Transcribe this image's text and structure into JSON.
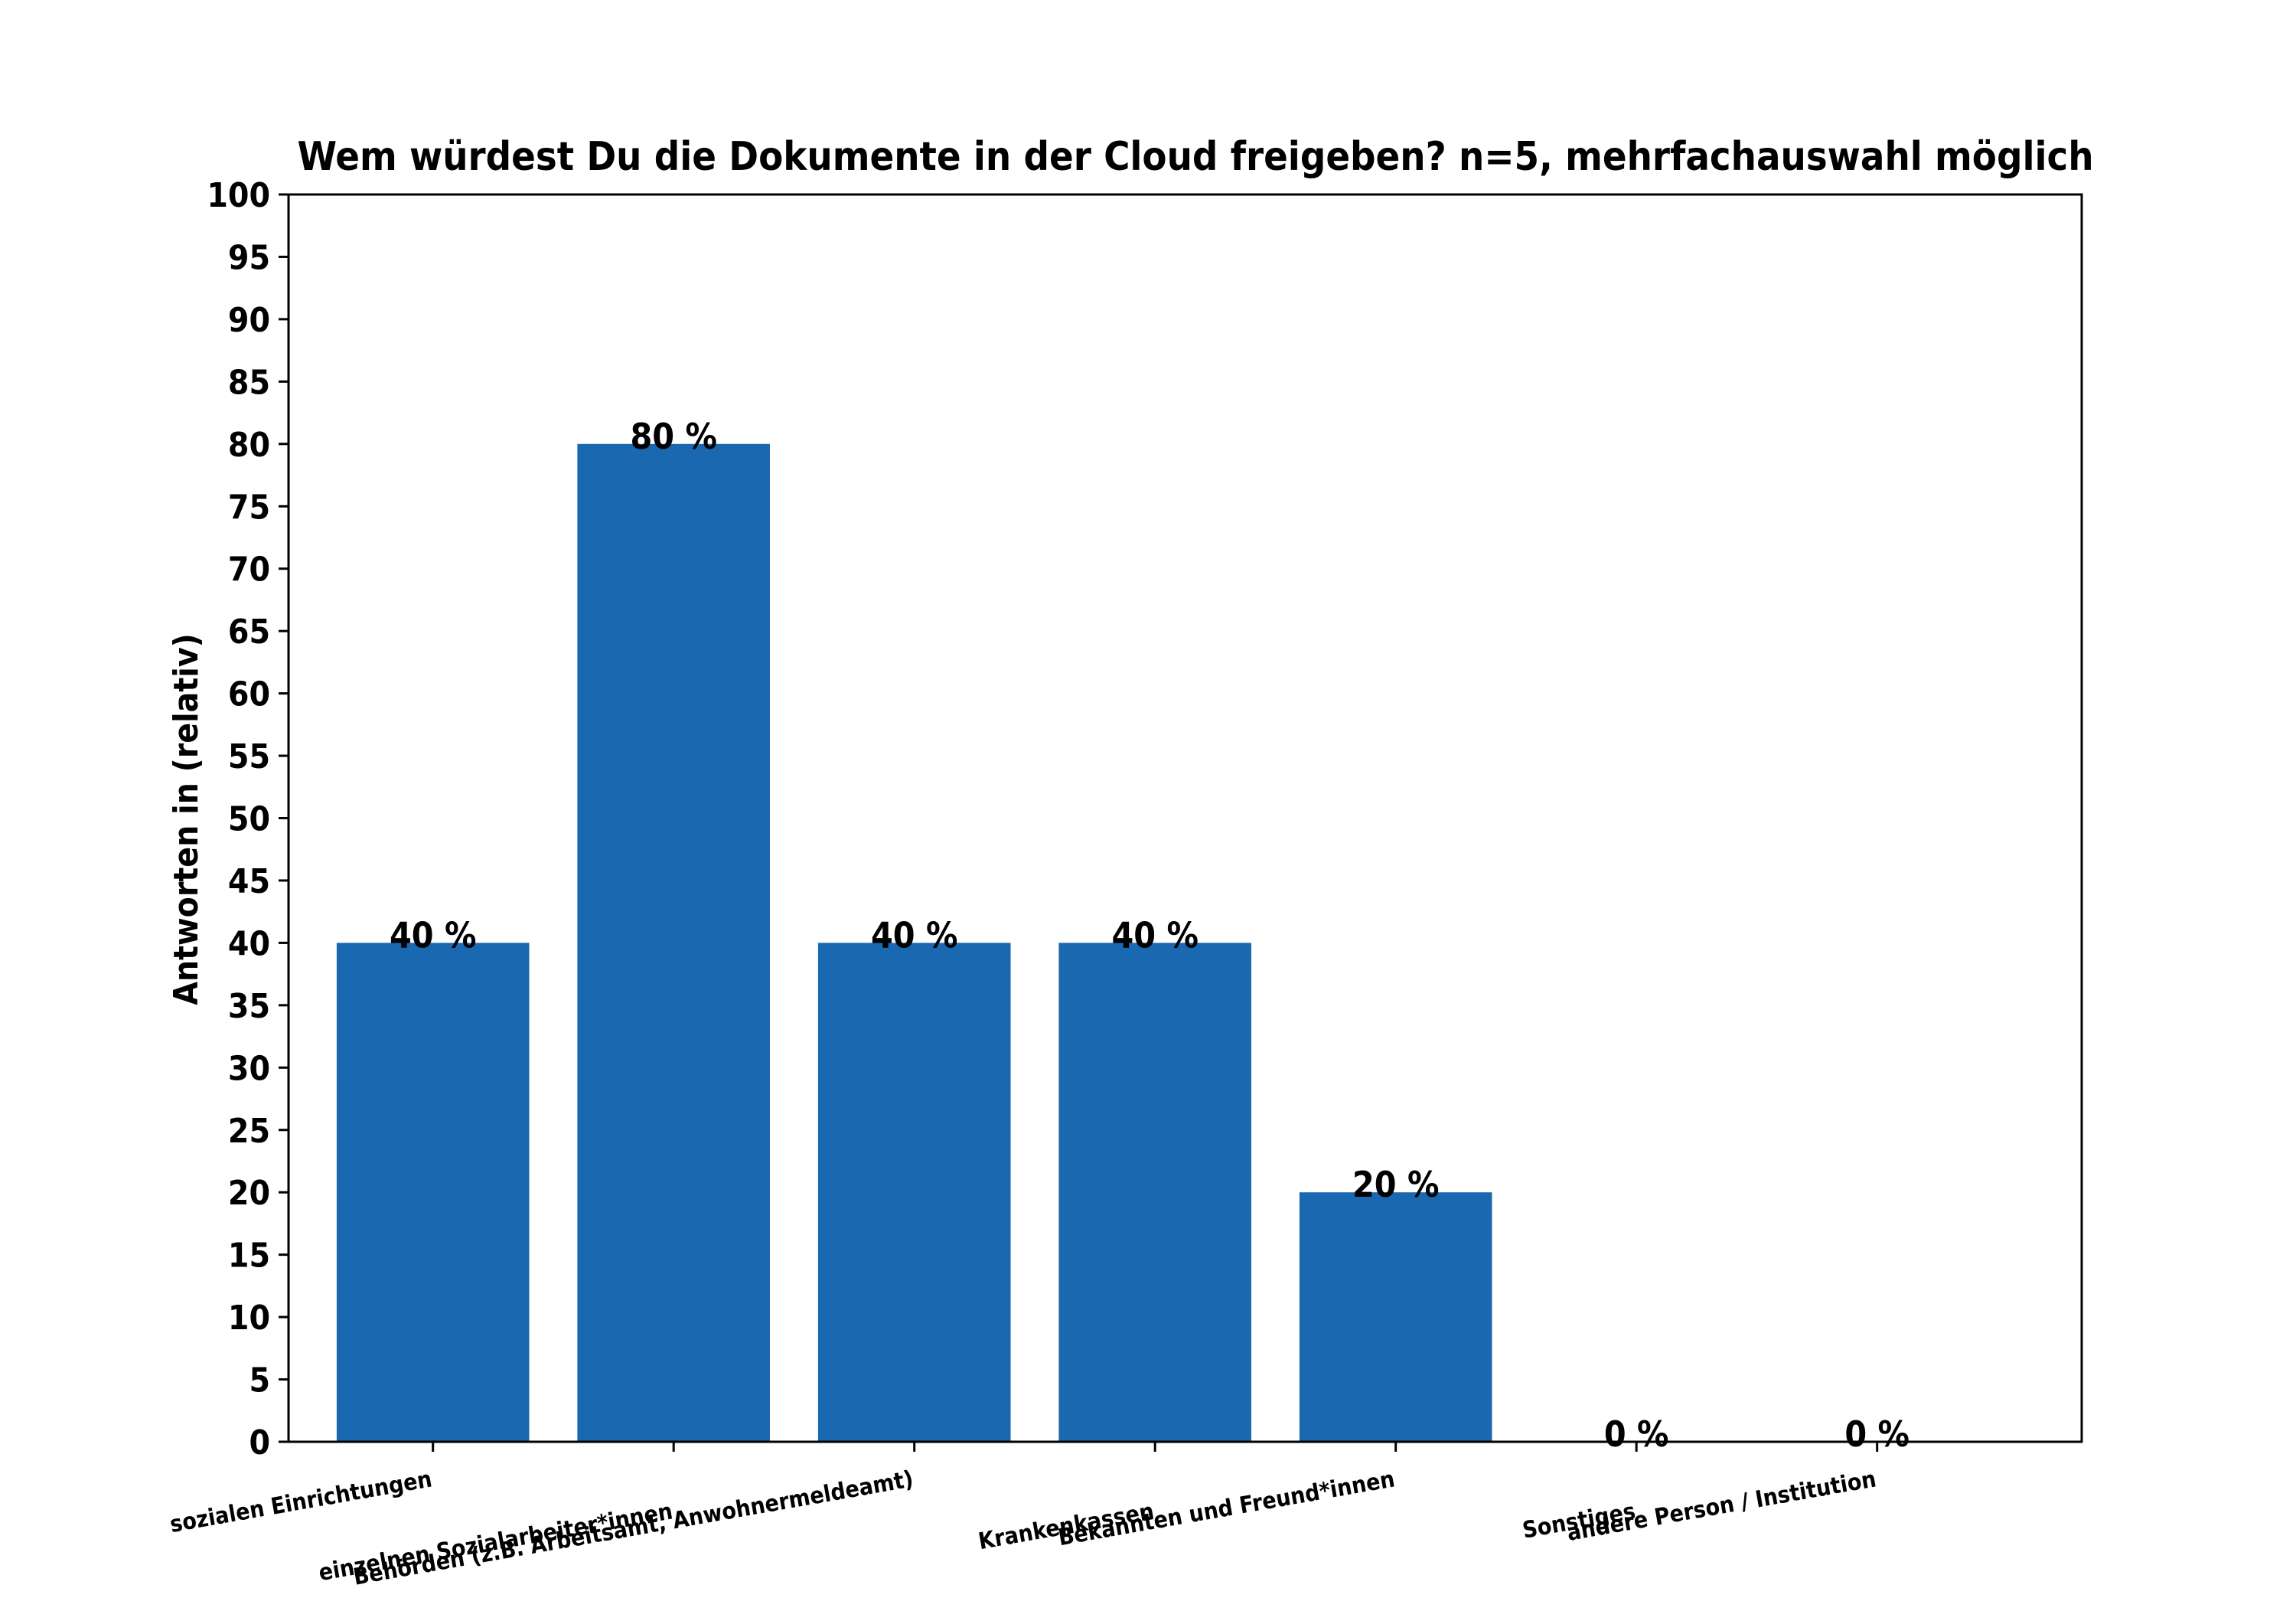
{
  "chart_data": {
    "type": "bar",
    "title": "Wem würdest Du die Dokumente in der Cloud freigeben? n=5, mehrfachauswahl möglich",
    "xlabel": "",
    "ylabel": "Antworten in (relativ)",
    "ylim": [
      0,
      100
    ],
    "yticks": [
      0,
      5,
      10,
      15,
      20,
      25,
      30,
      35,
      40,
      45,
      50,
      55,
      60,
      65,
      70,
      75,
      80,
      85,
      90,
      95,
      100
    ],
    "categories": [
      "sozialen Einrichtungen",
      "einzelnen Sozialarbeiter*innen",
      "Behörden (z.B. Arbeitsamt, Anwohnermeldeamt)",
      "Krankenkassen",
      "Bekannten und Freund*innen",
      "Sonstiges",
      "andere Person / Institution"
    ],
    "values": [
      40,
      80,
      40,
      40,
      20,
      0,
      0
    ],
    "value_labels": [
      "40 %",
      "80 %",
      "40 %",
      "40 %",
      "20 %",
      "0 %",
      "0 %"
    ],
    "bar_color": "#1a68b0",
    "grid": false,
    "legend": "none"
  }
}
